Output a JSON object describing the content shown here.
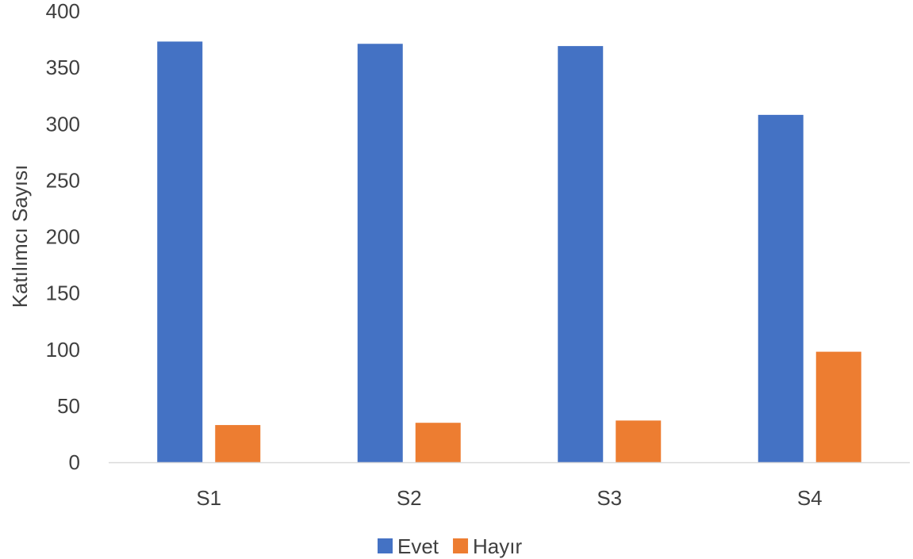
{
  "chart_data": {
    "type": "bar",
    "categories": [
      "S1",
      "S2",
      "S3",
      "S4"
    ],
    "series": [
      {
        "name": "Evet",
        "values": [
          373,
          371,
          369,
          308
        ],
        "color": "#4472C4"
      },
      {
        "name": "Hayır",
        "values": [
          33,
          35,
          37,
          98
        ],
        "color": "#ED7D31"
      }
    ],
    "ylabel": "Katılımcı Sayısı",
    "xlabel": "",
    "ylim": [
      0,
      400
    ],
    "yticks": [
      "0",
      "50",
      "100",
      "150",
      "200",
      "250",
      "300",
      "350",
      "400"
    ],
    "grid": false,
    "legend": "bottom"
  }
}
